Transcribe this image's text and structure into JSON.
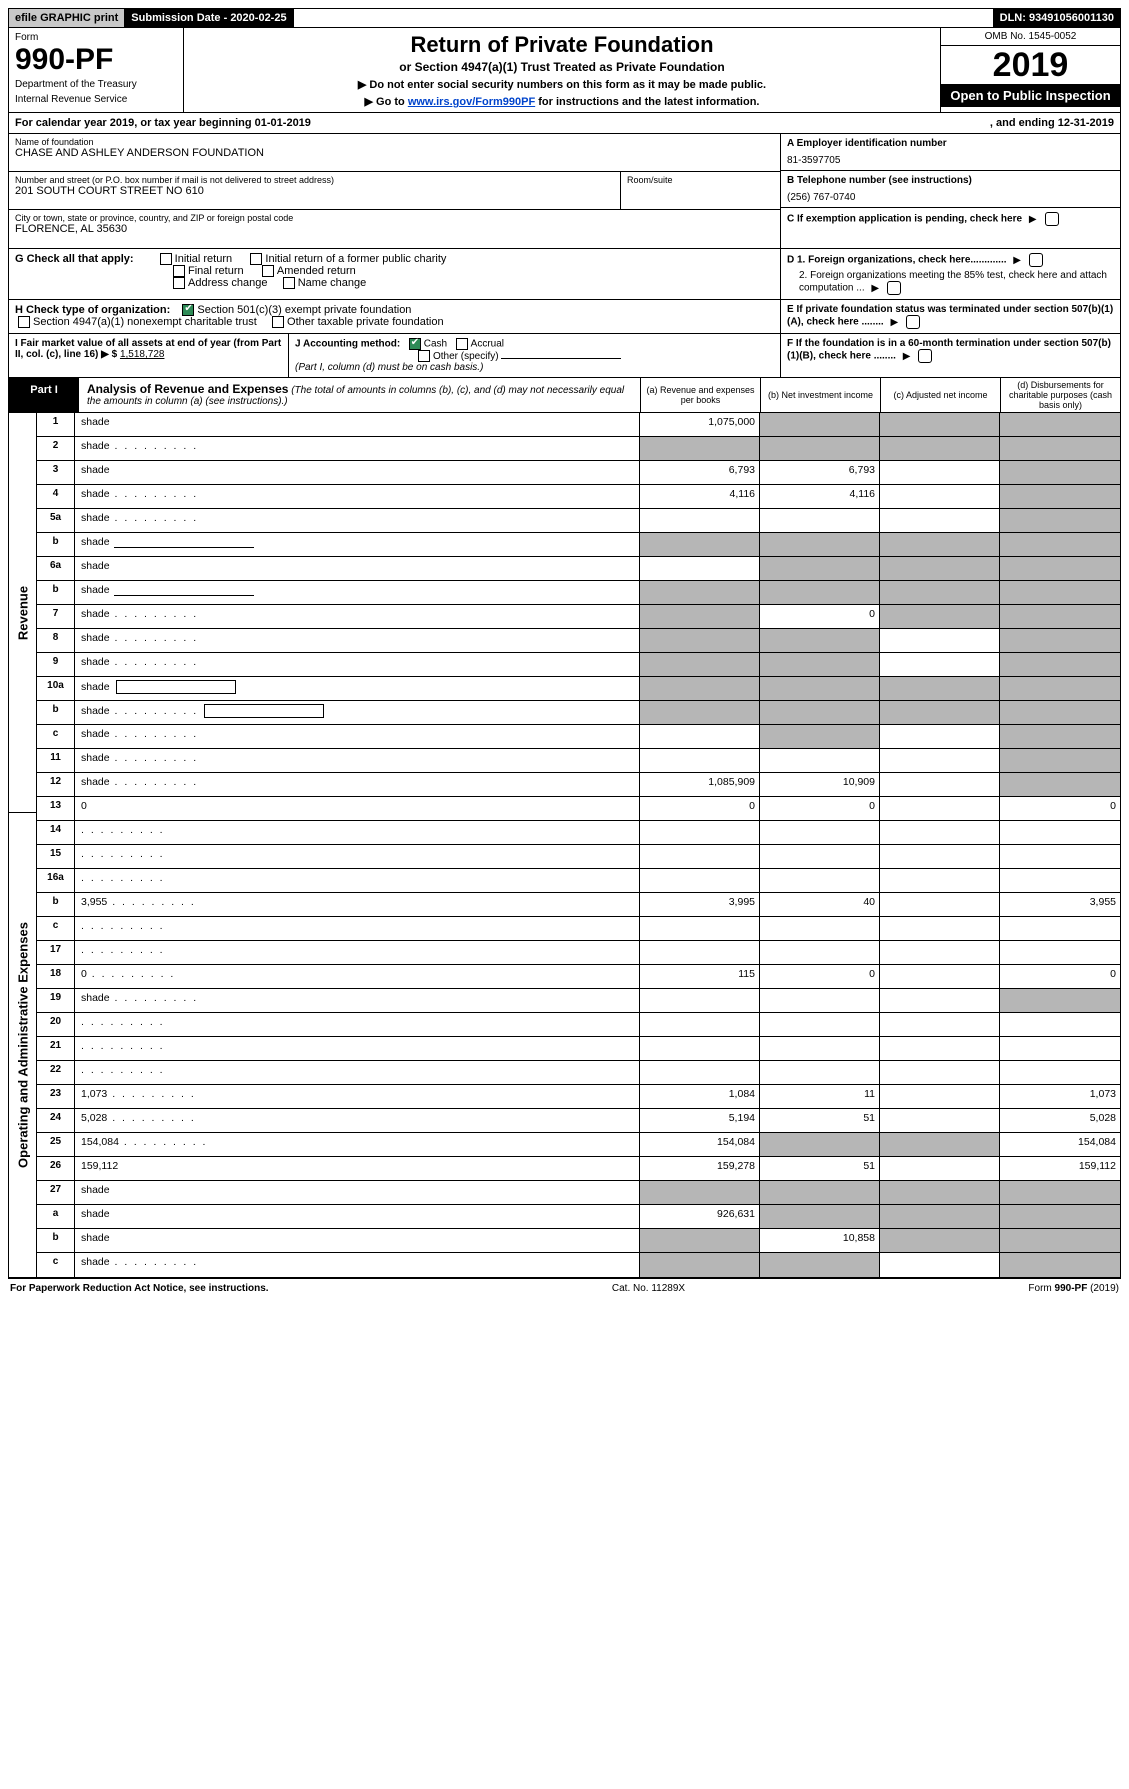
{
  "topbar": {
    "efile": "efile GRAPHIC print",
    "subdate_label": "Submission Date - 2020-02-25",
    "dln": "DLN: 93491056001130"
  },
  "header": {
    "form_label": "Form",
    "form_no": "990-PF",
    "dept1": "Department of the Treasury",
    "dept2": "Internal Revenue Service",
    "title": "Return of Private Foundation",
    "subtitle": "or Section 4947(a)(1) Trust Treated as Private Foundation",
    "note1": "▶ Do not enter social security numbers on this form as it may be made public.",
    "note2_pre": "▶ Go to ",
    "note2_link": "www.irs.gov/Form990PF",
    "note2_post": " for instructions and the latest information.",
    "omb": "OMB No. 1545-0052",
    "year": "2019",
    "open": "Open to Public Inspection"
  },
  "calyear": {
    "left": "For calendar year 2019, or tax year beginning 01-01-2019",
    "right": ", and ending 12-31-2019"
  },
  "entity": {
    "name_label": "Name of foundation",
    "name": "CHASE AND ASHLEY ANDERSON FOUNDATION",
    "addr_label": "Number and street (or P.O. box number if mail is not delivered to street address)",
    "addr": "201 SOUTH COURT STREET NO 610",
    "room_label": "Room/suite",
    "city_label": "City or town, state or province, country, and ZIP or foreign postal code",
    "city": "FLORENCE, AL  35630",
    "ein_label": "A Employer identification number",
    "ein": "81-3597705",
    "tel_label": "B Telephone number (see instructions)",
    "tel": "(256) 767-0740",
    "c_label": "C If exemption application is pending, check here"
  },
  "checkG": {
    "label": "G Check all that apply:",
    "opts": [
      "Initial return",
      "Initial return of a former public charity",
      "Final return",
      "Amended return",
      "Address change",
      "Name change"
    ]
  },
  "boxD": {
    "d1": "D 1. Foreign organizations, check here.............",
    "d2": "2. Foreign organizations meeting the 85% test, check here and attach computation ...",
    "e": "E  If private foundation status was terminated under section 507(b)(1)(A), check here ........"
  },
  "checkH": {
    "label": "H Check type of organization:",
    "opt1": "Section 501(c)(3) exempt private foundation",
    "opt2": "Section 4947(a)(1) nonexempt charitable trust",
    "opt3": "Other taxable private foundation"
  },
  "fmv": {
    "i_label": "I Fair market value of all assets at end of year (from Part II, col. (c), line 16) ▶ $",
    "i_value": "1,518,728",
    "j_label": "J Accounting method:",
    "j_cash": "Cash",
    "j_accr": "Accrual",
    "j_other": "Other (specify)",
    "j_note": "(Part I, column (d) must be on cash basis.)",
    "f_label": "F  If the foundation is in a 60-month termination under section 507(b)(1)(B), check here ........"
  },
  "part1": {
    "tab": "Part I",
    "title": "Analysis of Revenue and Expenses",
    "note": "(The total of amounts in columns (b), (c), and (d) may not necessarily equal the amounts in column (a) (see instructions).)",
    "colA": "(a)  Revenue and expenses per books",
    "colB": "(b)  Net investment income",
    "colC": "(c)  Adjusted net income",
    "colD": "(d)  Disbursements for charitable purposes (cash basis only)"
  },
  "vlabels": {
    "rev": "Revenue",
    "exp": "Operating and Administrative Expenses"
  },
  "rows": [
    {
      "sec": "rev",
      "n": "1",
      "d": "shade",
      "a": "1,075,000",
      "b": "shade",
      "c": "shade"
    },
    {
      "sec": "rev",
      "n": "2",
      "d": "shade",
      "dots": true,
      "a": "shade",
      "b": "shade",
      "c": "shade"
    },
    {
      "sec": "rev",
      "n": "3",
      "d": "shade",
      "a": "6,793",
      "b": "6,793",
      "c": ""
    },
    {
      "sec": "rev",
      "n": "4",
      "d": "shade",
      "dots": true,
      "a": "4,116",
      "b": "4,116",
      "c": ""
    },
    {
      "sec": "rev",
      "n": "5a",
      "d": "shade",
      "dots": true,
      "a": "",
      "b": "",
      "c": ""
    },
    {
      "sec": "rev",
      "n": "b",
      "d": "shade",
      "inline": true,
      "a": "shade",
      "b": "shade",
      "c": "shade"
    },
    {
      "sec": "rev",
      "n": "6a",
      "d": "shade",
      "a": "",
      "b": "shade",
      "c": "shade"
    },
    {
      "sec": "rev",
      "n": "b",
      "d": "shade",
      "inline": true,
      "a": "shade",
      "b": "shade",
      "c": "shade"
    },
    {
      "sec": "rev",
      "n": "7",
      "d": "shade",
      "dots": true,
      "a": "shade",
      "b": "0",
      "c": "shade"
    },
    {
      "sec": "rev",
      "n": "8",
      "d": "shade",
      "dots": true,
      "a": "shade",
      "b": "shade",
      "c": ""
    },
    {
      "sec": "rev",
      "n": "9",
      "d": "shade",
      "dots": true,
      "a": "shade",
      "b": "shade",
      "c": ""
    },
    {
      "sec": "rev",
      "n": "10a",
      "d": "shade",
      "box": true,
      "a": "shade",
      "b": "shade",
      "c": "shade"
    },
    {
      "sec": "rev",
      "n": "b",
      "d": "shade",
      "dots": true,
      "box": true,
      "a": "shade",
      "b": "shade",
      "c": "shade"
    },
    {
      "sec": "rev",
      "n": "c",
      "d": "shade",
      "dots": true,
      "a": "",
      "b": "shade",
      "c": ""
    },
    {
      "sec": "rev",
      "n": "11",
      "d": "shade",
      "dots": true,
      "a": "",
      "b": "",
      "c": ""
    },
    {
      "sec": "rev",
      "n": "12",
      "d": "shade",
      "dots": true,
      "a": "1,085,909",
      "b": "10,909",
      "c": ""
    },
    {
      "sec": "exp",
      "n": "13",
      "d": "0",
      "a": "0",
      "b": "0",
      "c": ""
    },
    {
      "sec": "exp",
      "n": "14",
      "d": "",
      "dots": true,
      "a": "",
      "b": "",
      "c": ""
    },
    {
      "sec": "exp",
      "n": "15",
      "d": "",
      "dots": true,
      "a": "",
      "b": "",
      "c": ""
    },
    {
      "sec": "exp",
      "n": "16a",
      "d": "",
      "dots": true,
      "a": "",
      "b": "",
      "c": ""
    },
    {
      "sec": "exp",
      "n": "b",
      "d": "3,955",
      "dots": true,
      "a": "3,995",
      "b": "40",
      "c": ""
    },
    {
      "sec": "exp",
      "n": "c",
      "d": "",
      "dots": true,
      "a": "",
      "b": "",
      "c": ""
    },
    {
      "sec": "exp",
      "n": "17",
      "d": "",
      "dots": true,
      "a": "",
      "b": "",
      "c": ""
    },
    {
      "sec": "exp",
      "n": "18",
      "d": "0",
      "dots": true,
      "a": "115",
      "b": "0",
      "c": ""
    },
    {
      "sec": "exp",
      "n": "19",
      "d": "shade",
      "dots": true,
      "a": "",
      "b": "",
      "c": ""
    },
    {
      "sec": "exp",
      "n": "20",
      "d": "",
      "dots": true,
      "a": "",
      "b": "",
      "c": ""
    },
    {
      "sec": "exp",
      "n": "21",
      "d": "",
      "dots": true,
      "a": "",
      "b": "",
      "c": ""
    },
    {
      "sec": "exp",
      "n": "22",
      "d": "",
      "dots": true,
      "a": "",
      "b": "",
      "c": ""
    },
    {
      "sec": "exp",
      "n": "23",
      "d": "1,073",
      "dots": true,
      "a": "1,084",
      "b": "11",
      "c": ""
    },
    {
      "sec": "exp",
      "n": "24",
      "d": "5,028",
      "dots": true,
      "a": "5,194",
      "b": "51",
      "c": ""
    },
    {
      "sec": "exp",
      "n": "25",
      "d": "154,084",
      "dots": true,
      "a": "154,084",
      "b": "shade",
      "c": "shade"
    },
    {
      "sec": "exp",
      "n": "26",
      "d": "159,112",
      "a": "159,278",
      "b": "51",
      "c": ""
    },
    {
      "sec": "exp",
      "n": "27",
      "d": "shade",
      "a": "shade",
      "b": "shade",
      "c": "shade"
    },
    {
      "sec": "exp",
      "n": "a",
      "d": "shade",
      "a": "926,631",
      "b": "shade",
      "c": "shade"
    },
    {
      "sec": "exp",
      "n": "b",
      "d": "shade",
      "a": "shade",
      "b": "10,858",
      "c": "shade"
    },
    {
      "sec": "exp",
      "n": "c",
      "d": "shade",
      "dots": true,
      "a": "shade",
      "b": "shade",
      "c": ""
    }
  ],
  "footer": {
    "left": "For Paperwork Reduction Act Notice, see instructions.",
    "center": "Cat. No. 11289X",
    "right": "Form 990-PF (2019)"
  },
  "colors": {
    "shade": "#b6b6b6",
    "black": "#000000",
    "checkgreen": "#2e8b57",
    "link": "#0044cc"
  }
}
